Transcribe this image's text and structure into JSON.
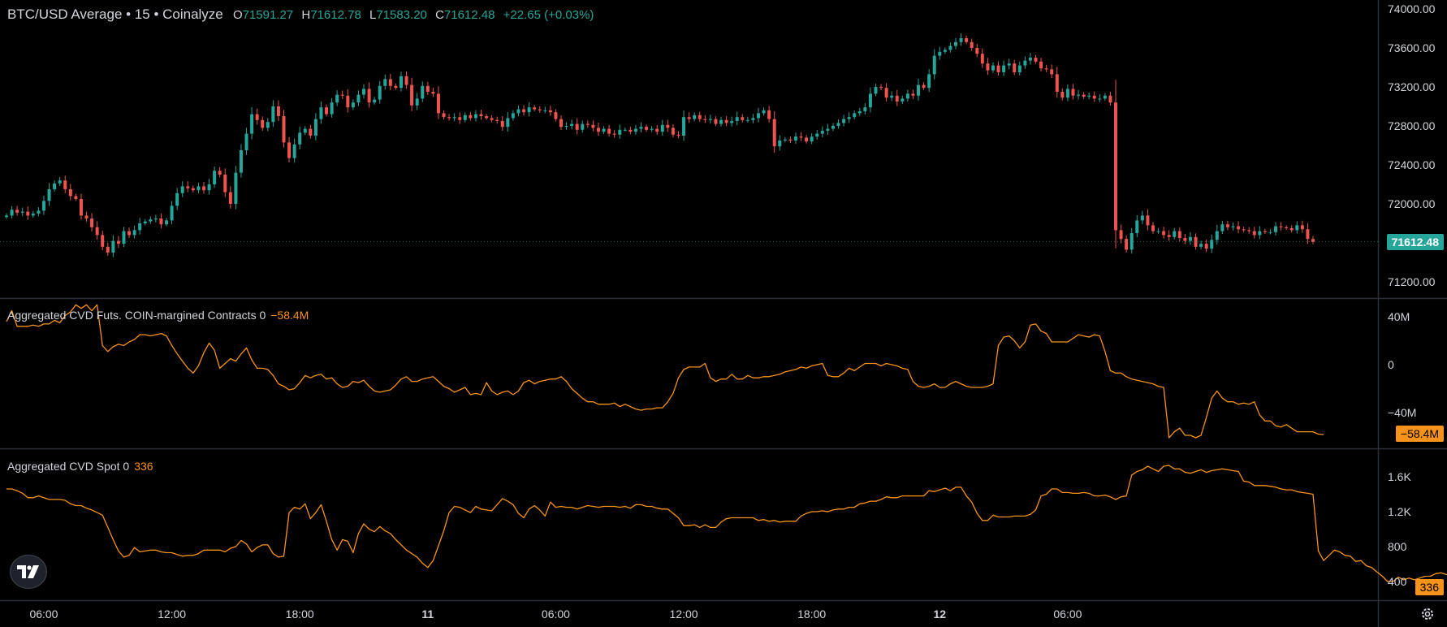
{
  "header": {
    "title": "BTC/USD Average • 15 • Coinalyze",
    "o_label": "O",
    "o_value": "71591.27",
    "h_label": "H",
    "h_value": "71612.78",
    "l_label": "L",
    "l_value": "71583.20",
    "c_label": "C",
    "c_value": "71612.48",
    "change": "+22.65 (+0.03%)"
  },
  "panes": {
    "futures": {
      "label": "Aggregated CVD Futs. COIN-margined Contracts 0",
      "value": "−58.4M"
    },
    "spot": {
      "label": "Aggregated CVD Spot 0",
      "value": "336"
    }
  },
  "price_axis": {
    "ticks": [
      "74000.00",
      "73600.00",
      "73200.00",
      "72800.00",
      "72400.00",
      "72000.00",
      "71200.00"
    ],
    "last_price": "71612.48"
  },
  "futures_axis": {
    "ticks": [
      "40M",
      "0",
      "−40M"
    ],
    "last": "−58.4M"
  },
  "spot_axis": {
    "ticks": [
      "1.6K",
      "1.2K",
      "800",
      "400"
    ],
    "last": "336"
  },
  "time_axis": [
    {
      "label": "06:00",
      "bold": false
    },
    {
      "label": "12:00",
      "bold": false
    },
    {
      "label": "18:00",
      "bold": false
    },
    {
      "label": "11",
      "bold": true
    },
    {
      "label": "06:00",
      "bold": false
    },
    {
      "label": "12:00",
      "bold": false
    },
    {
      "label": "18:00",
      "bold": false
    },
    {
      "label": "12",
      "bold": true
    },
    {
      "label": "06:00",
      "bold": false
    }
  ],
  "colors": {
    "up": "#26a69a",
    "down": "#ef5350",
    "cvd": "#f7931a",
    "text": "#d1d4dc",
    "grid": "#2a2e39"
  },
  "chart_data": [
    {
      "type": "candlestick",
      "title": "BTC/USD Average • 15 • Coinalyze",
      "x_labels_ticks": [
        "06:00",
        "12:00",
        "18:00",
        "11",
        "06:00",
        "12:00",
        "18:00",
        "12",
        "06:00"
      ],
      "ylim": [
        71000,
        74050
      ],
      "close": [
        71880,
        71940,
        71910,
        71920,
        71880,
        71900,
        71930,
        72030,
        72150,
        72210,
        72240,
        72150,
        72080,
        72050,
        71880,
        71850,
        71760,
        71680,
        71560,
        71500,
        71620,
        71590,
        71720,
        71680,
        71730,
        71800,
        71820,
        71840,
        71850,
        71790,
        71830,
        71980,
        72110,
        72180,
        72160,
        72140,
        72180,
        72140,
        72200,
        72340,
        72300,
        72120,
        72000,
        72320,
        72550,
        72720,
        72920,
        72860,
        72780,
        72840,
        73000,
        72900,
        72630,
        72470,
        72610,
        72730,
        72770,
        72700,
        72870,
        72990,
        72920,
        73040,
        73120,
        73110,
        72990,
        73040,
        73120,
        73180,
        73040,
        73070,
        73210,
        73280,
        73210,
        73190,
        73310,
        73220,
        73010,
        73080,
        73210,
        73150,
        73130,
        72930,
        72890,
        72880,
        72890,
        72860,
        72910,
        72880,
        72920,
        72900,
        72880,
        72860,
        72850,
        72790,
        72880,
        72930,
        72970,
        72940,
        72990,
        72970,
        72960,
        72960,
        72940,
        72870,
        72790,
        72800,
        72820,
        72760,
        72820,
        72810,
        72780,
        72740,
        72770,
        72720,
        72710,
        72760,
        72760,
        72740,
        72770,
        72790,
        72760,
        72770,
        72740,
        72810,
        72780,
        72710,
        72700,
        72890,
        72870,
        72910,
        72870,
        72860,
        72870,
        72820,
        72860,
        72830,
        72850,
        72890,
        72860,
        72860,
        72880,
        72930,
        72960,
        72870,
        72590,
        72650,
        72660,
        72650,
        72690,
        72680,
        72640,
        72690,
        72720,
        72750,
        72770,
        72800,
        72830,
        72870,
        72890,
        72930,
        72950,
        72990,
        73130,
        73200,
        73190,
        73090,
        73110,
        73050,
        73080,
        73130,
        73110,
        73220,
        73190,
        73330,
        73520,
        73560,
        73580,
        73620,
        73660,
        73700,
        73660,
        73600,
        73540,
        73440,
        73370,
        73420,
        73350,
        73420,
        73440,
        73350,
        73420,
        73470,
        73500,
        73460,
        73390,
        73380,
        73330,
        73150,
        73090,
        73180,
        73110,
        73120,
        73100,
        73110,
        73080,
        73080,
        73110,
        73040,
        71730,
        71640,
        71530,
        71700,
        71830,
        71880,
        71780,
        71720,
        71720,
        71680,
        71660,
        71720,
        71650,
        71620,
        71660,
        71560,
        71590,
        71540,
        71630,
        71720,
        71790,
        71760,
        71770,
        71740,
        71730,
        71720,
        71680,
        71720,
        71710,
        71710,
        71770,
        71760,
        71750,
        71730,
        71780,
        71740,
        71640,
        71610
      ]
    },
    {
      "type": "line",
      "title": "Aggregated CVD Futs. COIN-margined Contracts 0",
      "ylim": [
        -70,
        65
      ],
      "y_unit": "M",
      "values": [
        36,
        45,
        32,
        32,
        32,
        33,
        32,
        34,
        34,
        37,
        35,
        41,
        44,
        50,
        47,
        50,
        45,
        50,
        16,
        11,
        15,
        17,
        16,
        19,
        21,
        25,
        25,
        24,
        25,
        26,
        24,
        16,
        9,
        3,
        -3,
        -7,
        -1,
        10,
        18,
        12,
        -3,
        1,
        5,
        3,
        9,
        14,
        4,
        -3,
        -3,
        -4,
        -9,
        -16,
        -18,
        -21,
        -20,
        -15,
        -9,
        -11,
        -9,
        -8,
        -12,
        -11,
        -16,
        -19,
        -18,
        -14,
        -15,
        -13,
        -18,
        -22,
        -23,
        -22,
        -21,
        -17,
        -12,
        -10,
        -14,
        -14,
        -12,
        -11,
        -10,
        -14,
        -18,
        -20,
        -23,
        -21,
        -19,
        -25,
        -24,
        -25,
        -15,
        -22,
        -25,
        -23,
        -22,
        -25,
        -22,
        -15,
        -13,
        -16,
        -14,
        -13,
        -12,
        -12,
        -10,
        -14,
        -20,
        -24,
        -28,
        -31,
        -31,
        -33,
        -33,
        -33,
        -32,
        -35,
        -33,
        -35,
        -37,
        -38,
        -37,
        -37,
        -36,
        -36,
        -31,
        -24,
        -11,
        -4,
        -2,
        -2,
        -2,
        1,
        -11,
        -14,
        -12,
        -12,
        -8,
        -12,
        -12,
        -9,
        -11,
        -11,
        -10,
        -10,
        -9,
        -8,
        -6,
        -5,
        -4,
        -2,
        -3,
        -1,
        0,
        1,
        -9,
        -10,
        -10,
        -7,
        -3,
        -5,
        -2,
        1,
        1,
        1,
        -1,
        1,
        0,
        -1,
        -3,
        -4,
        -14,
        -18,
        -19,
        -18,
        -16,
        -19,
        -19,
        -16,
        -14,
        -16,
        -18,
        -19,
        -19,
        -19,
        -18,
        -16,
        16,
        23,
        24,
        20,
        14,
        19,
        33,
        34,
        28,
        26,
        19,
        19,
        19,
        19,
        22,
        25,
        24,
        23,
        25,
        24,
        11,
        -5,
        -7,
        -7,
        -10,
        -12,
        -13,
        -14,
        -15,
        -16,
        -18,
        -19,
        -61,
        -56,
        -53,
        -59,
        -59,
        -61,
        -59,
        -44,
        -28,
        -22,
        -28,
        -31,
        -31,
        -33,
        -32,
        -33,
        -31,
        -42,
        -47,
        -47,
        -51,
        -52,
        -50,
        -53,
        -56,
        -56,
        -56,
        -56,
        -58,
        -58.4
      ]
    },
    {
      "type": "line",
      "title": "Aggregated CVD Spot 0",
      "ylim": [
        150,
        1810
      ],
      "values": [
        1460,
        1460,
        1440,
        1410,
        1360,
        1360,
        1380,
        1360,
        1340,
        1340,
        1340,
        1330,
        1290,
        1270,
        1270,
        1240,
        1220,
        1190,
        1160,
        1020,
        880,
        750,
        680,
        700,
        790,
        740,
        750,
        760,
        760,
        740,
        730,
        730,
        710,
        690,
        700,
        700,
        720,
        760,
        760,
        760,
        760,
        740,
        780,
        800,
        870,
        830,
        740,
        790,
        820,
        820,
        720,
        680,
        690,
        1190,
        1250,
        1230,
        1290,
        1120,
        1190,
        1280,
        1090,
        880,
        760,
        880,
        860,
        730,
        950,
        1060,
        1000,
        970,
        1030,
        980,
        950,
        880,
        820,
        760,
        720,
        680,
        610,
        560,
        640,
        810,
        980,
        1190,
        1260,
        1250,
        1220,
        1190,
        1260,
        1230,
        1220,
        1210,
        1280,
        1350,
        1320,
        1280,
        1180,
        1130,
        1230,
        1270,
        1220,
        1150,
        1310,
        1250,
        1260,
        1250,
        1250,
        1230,
        1250,
        1270,
        1260,
        1250,
        1260,
        1260,
        1260,
        1250,
        1260,
        1240,
        1280,
        1280,
        1260,
        1260,
        1240,
        1230,
        1230,
        1180,
        1130,
        1040,
        1040,
        1050,
        1020,
        1050,
        1020,
        1020,
        1080,
        1120,
        1130,
        1130,
        1130,
        1130,
        1130,
        1100,
        1110,
        1090,
        1100,
        1080,
        1090,
        1090,
        1090,
        1150,
        1180,
        1200,
        1200,
        1210,
        1200,
        1220,
        1230,
        1230,
        1250,
        1250,
        1290,
        1300,
        1320,
        1320,
        1340,
        1370,
        1360,
        1360,
        1380,
        1380,
        1380,
        1380,
        1380,
        1440,
        1430,
        1450,
        1470,
        1440,
        1480,
        1480,
        1380,
        1310,
        1180,
        1100,
        1100,
        1160,
        1140,
        1140,
        1140,
        1150,
        1150,
        1150,
        1170,
        1220,
        1380,
        1400,
        1460,
        1460,
        1420,
        1420,
        1410,
        1410,
        1420,
        1410,
        1380,
        1380,
        1390,
        1370,
        1340,
        1370,
        1380,
        1620,
        1660,
        1680,
        1720,
        1690,
        1660,
        1720,
        1730,
        1690,
        1690,
        1650,
        1640,
        1660,
        1680,
        1650,
        1670,
        1680,
        1690,
        1680,
        1670,
        1660,
        1550,
        1540,
        1500,
        1500,
        1500,
        1490,
        1480,
        1460,
        1450,
        1450,
        1430,
        1420,
        1410,
        1400,
        750,
        640,
        700,
        760,
        740,
        700,
        690,
        630,
        640,
        580,
        560,
        510,
        460,
        400,
        400,
        450,
        420,
        440,
        420,
        440,
        460,
        460,
        490,
        500,
        480,
        470,
        440,
        420,
        450,
        410,
        400,
        370,
        360,
        350,
        336
      ]
    }
  ]
}
